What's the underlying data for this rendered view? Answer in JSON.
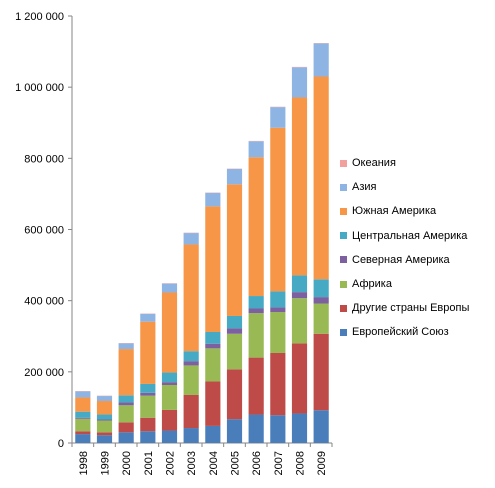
{
  "chart_data": {
    "type": "bar",
    "stacked": true,
    "title": "",
    "xlabel": "",
    "ylabel": "",
    "ylim": [
      0,
      1200000
    ],
    "y_ticks": [
      0,
      200000,
      400000,
      600000,
      800000,
      1000000,
      1200000
    ],
    "y_tick_labels": [
      "0",
      "200 000",
      "400 000",
      "600 000",
      "800 000",
      "1 000 000",
      "1 200 000"
    ],
    "grid": false,
    "legend_position": "right",
    "categories": [
      "1998",
      "1999",
      "2000",
      "2001",
      "2002",
      "2003",
      "2004",
      "2005",
      "2006",
      "2007",
      "2008",
      "2009"
    ],
    "series": [
      {
        "name": "Европейский Союз",
        "color": "#4a7ebb",
        "values": [
          25000,
          22000,
          30000,
          33000,
          35000,
          42000,
          48000,
          67000,
          80000,
          78000,
          83000,
          92000
        ]
      },
      {
        "name": "Другие страны Европы",
        "color": "#be4b48",
        "values": [
          8000,
          8000,
          28000,
          38000,
          58000,
          93000,
          125000,
          140000,
          160000,
          175000,
          197000,
          215000
        ]
      },
      {
        "name": "Африка",
        "color": "#98b954",
        "values": [
          35000,
          33000,
          48000,
          62000,
          70000,
          83000,
          93000,
          100000,
          125000,
          115000,
          127000,
          85000
        ]
      },
      {
        "name": "Северная Америка",
        "color": "#7d60a0",
        "values": [
          3000,
          3000,
          8000,
          8000,
          8000,
          12000,
          13000,
          15000,
          13000,
          13000,
          17000,
          18000
        ]
      },
      {
        "name": "Центральная Америка",
        "color": "#46aac5",
        "values": [
          17000,
          14000,
          20000,
          25000,
          27000,
          28000,
          33000,
          35000,
          35000,
          45000,
          47000,
          50000
        ]
      },
      {
        "name": "Южная Америка",
        "color": "#f79646",
        "values": [
          40000,
          38000,
          130000,
          175000,
          225000,
          300000,
          353000,
          370000,
          390000,
          460000,
          500000,
          570000
        ]
      },
      {
        "name": "Азия",
        "color": "#8eb4e3",
        "values": [
          17000,
          14000,
          16000,
          22000,
          25000,
          32000,
          38000,
          43000,
          45000,
          58000,
          85000,
          93000
        ]
      },
      {
        "name": "Океания",
        "color": "#f2a09e",
        "values": [
          1000,
          1000,
          1000,
          1000,
          1000,
          1000,
          1000,
          1000,
          1000,
          1000,
          1000,
          1000
        ]
      }
    ],
    "legend_order": [
      "Океания",
      "Азия",
      "Южная Америка",
      "Центральная Америка",
      "Северная Америка",
      "Африка",
      "Другие страны Европы",
      "Европейский Союз"
    ]
  }
}
